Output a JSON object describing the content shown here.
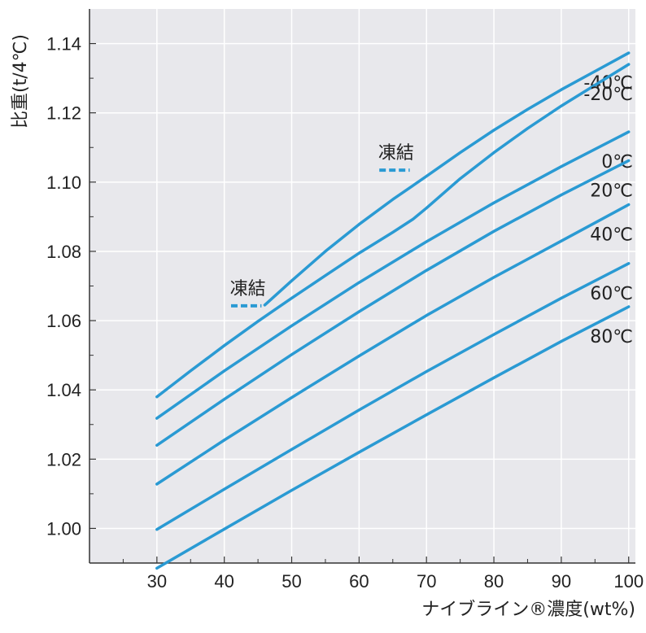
{
  "chart_data": {
    "type": "line",
    "xlabel": "ナイブライン®濃度(wt%)",
    "ylabel": "比重(t/4℃)",
    "xlim": [
      20,
      101
    ],
    "ylim": [
      0.99,
      1.15
    ],
    "grid": true,
    "x_ticks": [
      30,
      40,
      50,
      60,
      70,
      80,
      90,
      100
    ],
    "x_tick_labels": [
      "30",
      "40",
      "50",
      "60",
      "70",
      "80",
      "90",
      "100"
    ],
    "y_ticks": [
      1.0,
      1.02,
      1.04,
      1.06,
      1.08,
      1.1,
      1.12,
      1.14
    ],
    "y_tick_labels": [
      "1.00",
      "1.02",
      "1.04",
      "1.06",
      "1.08",
      "1.10",
      "1.12",
      "1.14"
    ],
    "colors": {
      "line": "#2a9ad3",
      "plot_bg": "#e8e8ec",
      "grid": "#ffffff",
      "frame": "#333333"
    },
    "series": [
      {
        "name": "-40℃",
        "x": [
          46,
          50,
          55,
          60,
          65,
          70,
          75,
          80,
          85,
          90,
          95,
          100
        ],
        "y": [
          1.0645,
          1.0715,
          1.08,
          1.0878,
          1.095,
          1.1017,
          1.1085,
          1.115,
          1.121,
          1.1267,
          1.132,
          1.1373
        ]
      },
      {
        "name": "-20℃",
        "x": [
          30,
          35,
          40,
          45,
          50,
          55,
          60,
          65,
          68,
          70,
          75,
          80,
          85,
          90,
          95,
          100
        ],
        "y": [
          1.038,
          1.0455,
          1.0528,
          1.0598,
          1.0665,
          1.073,
          1.0795,
          1.0855,
          1.0893,
          1.0925,
          1.101,
          1.1085,
          1.1155,
          1.122,
          1.128,
          1.134
        ]
      },
      {
        "name": "0℃",
        "x": [
          30,
          40,
          50,
          60,
          70,
          80,
          90,
          100
        ],
        "y": [
          1.0318,
          1.0455,
          1.0585,
          1.071,
          1.0828,
          1.094,
          1.1045,
          1.1145
        ]
      },
      {
        "name": "20℃",
        "x": [
          30,
          40,
          50,
          60,
          70,
          80,
          90,
          100
        ],
        "y": [
          1.024,
          1.0373,
          1.0502,
          1.0626,
          1.0745,
          1.0858,
          1.0963,
          1.1062
        ]
      },
      {
        "name": "40℃",
        "x": [
          30,
          40,
          50,
          60,
          70,
          80,
          90,
          100
        ],
        "y": [
          1.0128,
          1.0255,
          1.0378,
          1.0498,
          1.0615,
          1.0725,
          1.083,
          1.0935
        ]
      },
      {
        "name": "60℃",
        "x": [
          30,
          40,
          50,
          60,
          70,
          80,
          90,
          100
        ],
        "y": [
          0.9997,
          1.0113,
          1.0228,
          1.0342,
          1.0453,
          1.056,
          1.0665,
          1.0765
        ]
      },
      {
        "name": "80℃",
        "x": [
          30,
          40,
          50,
          60,
          70,
          80,
          90,
          100
        ],
        "y": [
          0.9885,
          0.9998,
          1.011,
          1.022,
          1.0328,
          1.0435,
          1.054,
          1.064
        ]
      }
    ],
    "annotations": [
      {
        "text": "凍結",
        "x": [
          41,
          46
        ],
        "y": 1.0645
      },
      {
        "text": "凍結",
        "x": [
          63,
          68
        ],
        "y": 1.1037
      }
    ]
  }
}
